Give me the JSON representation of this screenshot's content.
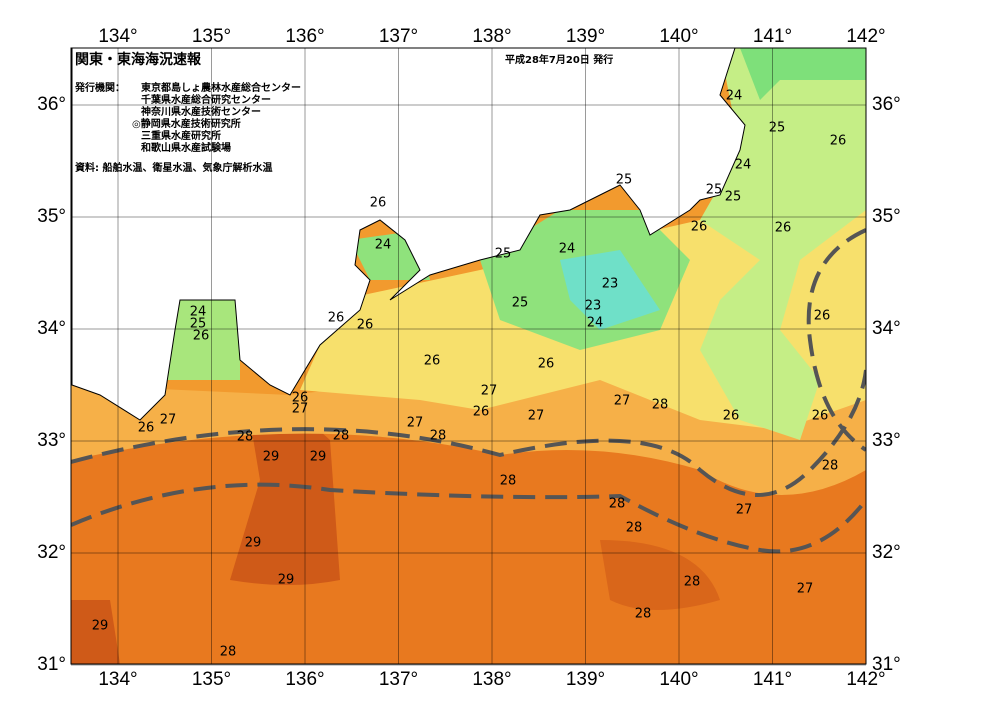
{
  "header": {
    "title": "関東・東海海況速報",
    "date": "平成28年7月20日 発行",
    "issuer_label": "発行機関：",
    "issuers": [
      "東京都島しょ農林水産総合センター",
      "千葉県水産総合研究センター",
      "神奈川県水産技術センター",
      "◎静岡県水産技術研究所",
      "三重県水産研究所",
      "和歌山県水産試験場"
    ],
    "source": "資料: 船舶水温、衛星水温、気象庁解析水温"
  },
  "map": {
    "lon_ticks": [
      {
        "value": 134,
        "label": "134°"
      },
      {
        "value": 135,
        "label": "135°"
      },
      {
        "value": 136,
        "label": "136°"
      },
      {
        "value": 137,
        "label": "137°"
      },
      {
        "value": 138,
        "label": "138°"
      },
      {
        "value": 139,
        "label": "139°"
      },
      {
        "value": 140,
        "label": "140°"
      },
      {
        "value": 141,
        "label": "141°"
      },
      {
        "value": 142,
        "label": "142°"
      }
    ],
    "lat_ticks": [
      {
        "value": 31,
        "label": "31°"
      },
      {
        "value": 32,
        "label": "32°"
      },
      {
        "value": 33,
        "label": "33°"
      },
      {
        "value": 34,
        "label": "34°"
      },
      {
        "value": 35,
        "label": "35°"
      },
      {
        "value": 36,
        "label": "36°"
      }
    ],
    "contour_labels": [
      "24",
      "25",
      "26",
      "24",
      "25",
      "25",
      "25",
      "26",
      "24",
      "24",
      "25",
      "26",
      "26",
      "23",
      "23",
      "24",
      "25",
      "24",
      "25",
      "26",
      "26",
      "26",
      "26",
      "26",
      "26",
      "27",
      "27",
      "28",
      "26",
      "27",
      "26",
      "26",
      "26",
      "27",
      "27",
      "26",
      "27",
      "28",
      "28",
      "28",
      "29",
      "29",
      "28",
      "28",
      "28",
      "27",
      "28",
      "29",
      "29",
      "28",
      "27",
      "28",
      "29",
      "28"
    ]
  }
}
